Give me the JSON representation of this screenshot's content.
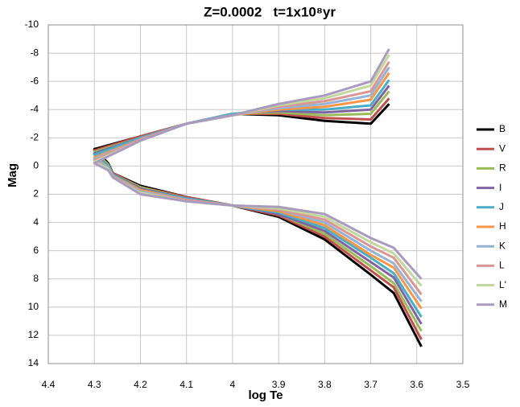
{
  "chart_data": {
    "type": "line",
    "title": "Z=0.0002   t=1x10⁸yr",
    "x_label": "log Te",
    "y_label": "Mag",
    "x": [
      3.59,
      3.65,
      3.7,
      3.8,
      3.9,
      4.0,
      4.1,
      4.2,
      4.26,
      4.27,
      4.3,
      4.2,
      4.1,
      4.0,
      3.9,
      3.8,
      3.7,
      3.66
    ],
    "xlim": [
      4.4,
      3.5
    ],
    "xticks": [
      4.4,
      4.3,
      4.2,
      4.1,
      4,
      3.9,
      3.8,
      3.7,
      3.6,
      3.5
    ],
    "ylim": [
      -10,
      14
    ],
    "yticks": [
      -10,
      -8,
      -6,
      -4,
      -2,
      0,
      2,
      4,
      6,
      8,
      10,
      12,
      14
    ],
    "grid": true,
    "legend": "right",
    "series": [
      {
        "name": "B",
        "color": "#000000",
        "values": [
          12.8,
          9.0,
          7.7,
          5.2,
          3.6,
          2.8,
          2.2,
          1.4,
          0.5,
          -0.2,
          -1.2,
          -2.1,
          -3.0,
          -3.7,
          -3.6,
          -3.2,
          -3.0,
          -4.4
        ]
      },
      {
        "name": "V",
        "color": "#c0504d",
        "values": [
          12.3,
          8.6,
          7.4,
          5.0,
          3.5,
          2.8,
          2.2,
          1.5,
          0.5,
          -0.1,
          -1.1,
          -2.1,
          -3.0,
          -3.7,
          -3.7,
          -3.4,
          -3.3,
          -4.8
        ]
      },
      {
        "name": "R",
        "color": "#9bbb59",
        "values": [
          11.7,
          8.3,
          7.1,
          4.8,
          3.4,
          2.8,
          2.3,
          1.5,
          0.6,
          -0.1,
          -1.0,
          -2.0,
          -3.0,
          -3.7,
          -3.8,
          -3.6,
          -3.7,
          -5.3
        ]
      },
      {
        "name": "I",
        "color": "#8064a2",
        "values": [
          11.2,
          7.9,
          6.8,
          4.6,
          3.4,
          2.8,
          2.3,
          1.6,
          0.6,
          0.0,
          -0.9,
          -2.0,
          -3.0,
          -3.7,
          -3.9,
          -3.8,
          -4.0,
          -5.7
        ]
      },
      {
        "name": "J",
        "color": "#4bacc6",
        "values": [
          10.7,
          7.6,
          6.5,
          4.4,
          3.3,
          2.8,
          2.3,
          1.7,
          0.6,
          0.0,
          -0.8,
          -2.0,
          -3.0,
          -3.7,
          -4.0,
          -4.0,
          -4.3,
          -6.1
        ]
      },
      {
        "name": "H",
        "color": "#f79646",
        "values": [
          10.1,
          7.2,
          6.3,
          4.2,
          3.2,
          2.8,
          2.4,
          1.7,
          0.7,
          0.1,
          -0.6,
          -1.9,
          -3.0,
          -3.6,
          -4.0,
          -4.2,
          -4.7,
          -6.6
        ]
      },
      {
        "name": "K",
        "color": "#95b3d7",
        "values": [
          9.6,
          6.9,
          6.0,
          4.0,
          3.1,
          2.8,
          2.4,
          1.8,
          0.7,
          0.1,
          -0.5,
          -1.9,
          -3.0,
          -3.6,
          -4.1,
          -4.4,
          -5.0,
          -7.0
        ]
      },
      {
        "name": "L",
        "color": "#d99694",
        "values": [
          9.1,
          6.5,
          5.7,
          3.8,
          3.1,
          2.8,
          2.4,
          1.9,
          0.7,
          0.2,
          -0.4,
          -1.9,
          -3.0,
          -3.6,
          -4.2,
          -4.6,
          -5.3,
          -7.4
        ]
      },
      {
        "name": "L'",
        "color": "#c3d69b",
        "values": [
          8.5,
          6.2,
          5.4,
          3.6,
          3.0,
          2.8,
          2.5,
          1.9,
          0.8,
          0.2,
          -0.3,
          -1.8,
          -3.0,
          -3.6,
          -4.3,
          -4.8,
          -5.7,
          -7.9
        ]
      },
      {
        "name": "M",
        "color": "#a99bbd",
        "values": [
          8.0,
          5.8,
          5.1,
          3.4,
          2.9,
          2.8,
          2.5,
          2.0,
          0.8,
          0.3,
          -0.2,
          -1.8,
          -3.0,
          -3.6,
          -4.4,
          -5.0,
          -6.0,
          -8.3
        ]
      }
    ]
  }
}
